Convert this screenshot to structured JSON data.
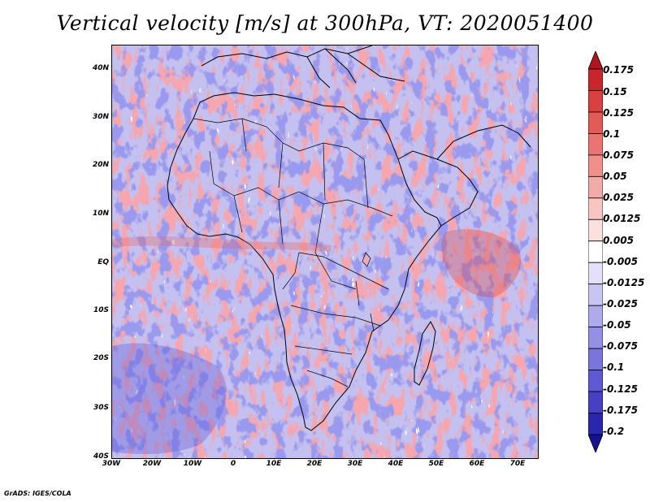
{
  "title": "Vertical velocity [m/s] at 300hPa, VT: 2020051400",
  "credit": "GrADS: IGES/COLA",
  "map": {
    "lat_labels": [
      "40N",
      "30N",
      "20N",
      "10N",
      "EQ",
      "10S",
      "20S",
      "30S",
      "40S"
    ],
    "lon_labels": [
      "30W",
      "20W",
      "10W",
      "0",
      "10E",
      "20E",
      "30E",
      "40E",
      "50E",
      "60E",
      "70E"
    ],
    "lat_range": [
      -40,
      44
    ],
    "lon_range": [
      -30,
      75
    ],
    "field_colors": {
      "background": "#c9c5f1",
      "positive": "#e98c8c",
      "negative": "#6b6be0",
      "land_outline": "#000000"
    }
  },
  "colorbar": {
    "labels": [
      "0.175",
      "0.15",
      "0.125",
      "0.1",
      "0.075",
      "0.05",
      "0.025",
      "0.0125",
      "0.005",
      "-0.005",
      "-0.0125",
      "-0.025",
      "-0.05",
      "-0.075",
      "-0.1",
      "-0.125",
      "-0.175",
      "-0.2"
    ],
    "colors": [
      "#b3141e",
      "#c9262c",
      "#d8413f",
      "#e35a57",
      "#ea7570",
      "#ef908b",
      "#f3aba7",
      "#f7c6c3",
      "#fae0de",
      "#ffffff",
      "#e3e1f8",
      "#c8c5f2",
      "#aeaaec",
      "#9490e5",
      "#7a74dd",
      "#5f59d3",
      "#4540c4",
      "#2a27ae",
      "#15128f"
    ]
  }
}
